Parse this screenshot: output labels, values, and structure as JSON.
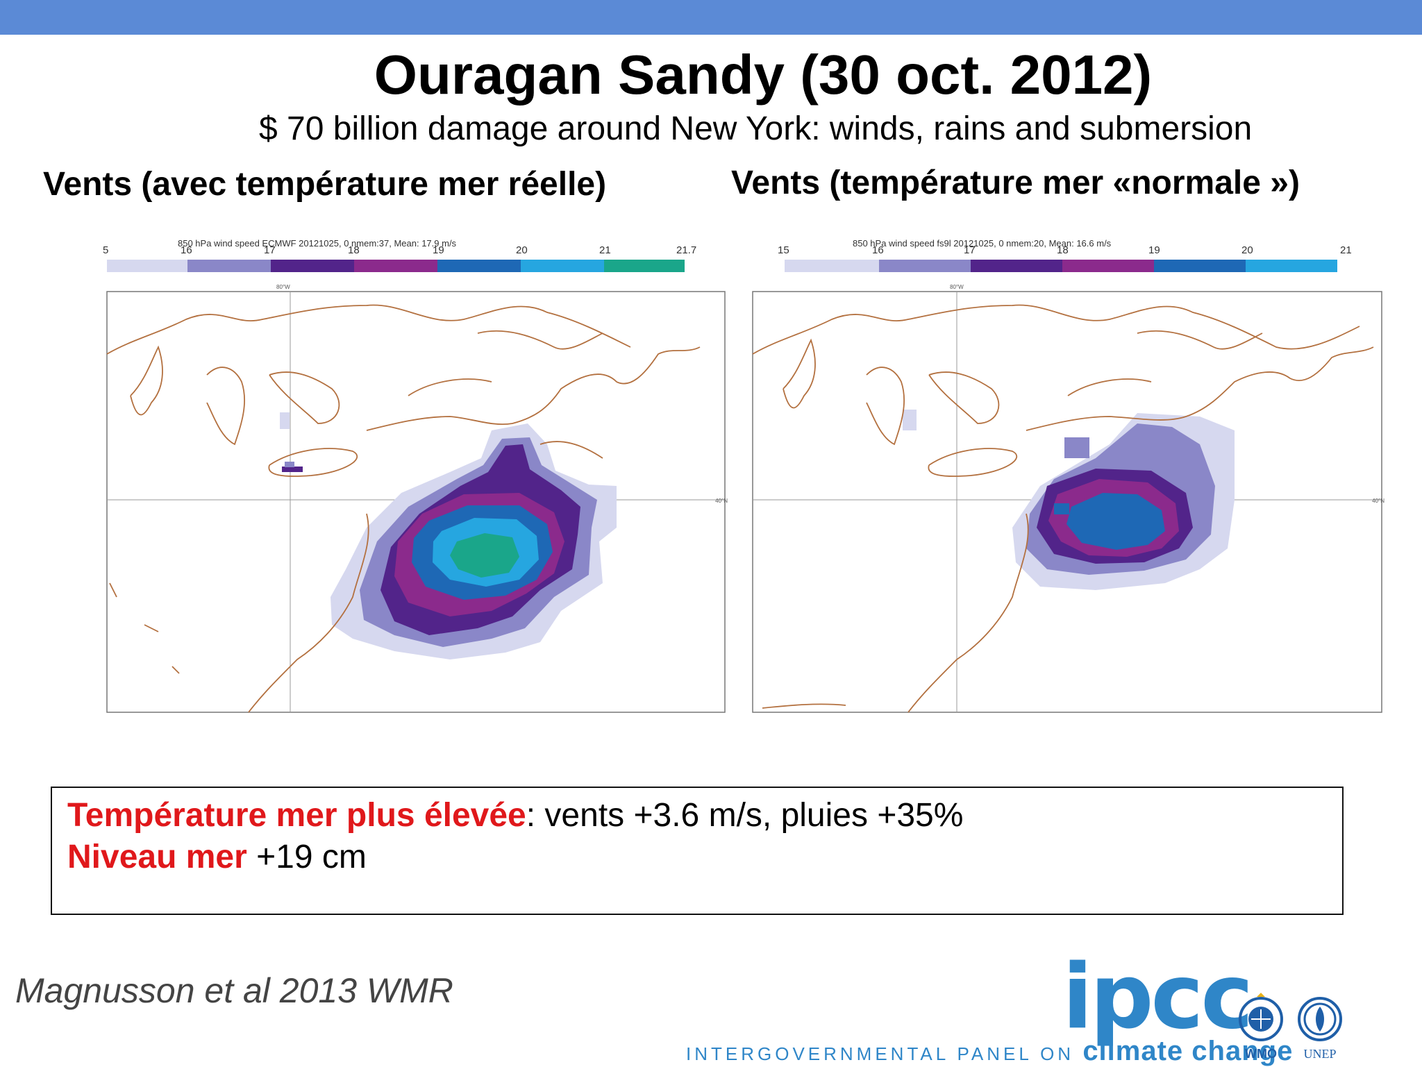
{
  "header": {
    "title": "Ouragan Sandy (30 oct. 2012)",
    "subtitle": "$ 70 billion damage around New York: winds, rains and submersion"
  },
  "panels": {
    "left": {
      "heading": "Vents (avec température mer réelle)",
      "colorbar_caption": "850 hPa wind speed  ECMWF 20121025, 0 nmem:37, Mean: 17.9 m/s",
      "colorbar_ticks": [
        "5",
        "16",
        "17",
        "18",
        "19",
        "20",
        "21",
        "21.7"
      ],
      "colorbar_colors": [
        "#d6d8ef",
        "#8a87c8",
        "#52248a",
        "#8b2a8c",
        "#1e68b5",
        "#26a6e0",
        "#1aa68a"
      ],
      "lon_label": "80°W",
      "lat_label": "40°N"
    },
    "right": {
      "heading": "Vents (température mer «normale »)",
      "colorbar_caption": "850 hPa wind speed  fs9l 20121025, 0 nmem:20, Mean: 16.6 m/s",
      "colorbar_ticks": [
        "15",
        "16",
        "17",
        "18",
        "19",
        "20",
        "21"
      ],
      "colorbar_colors": [
        "#d6d8ef",
        "#8a87c8",
        "#52248a",
        "#8b2a8c",
        "#1e68b5",
        "#26a6e0"
      ],
      "lon_label": "80°W",
      "lat_label": "40°N"
    }
  },
  "infobox": {
    "line1_label": "Température mer plus élevée",
    "line1_text": ":  vents +3.6 m/s, pluies +35%",
    "line2_label": "Niveau mer",
    "line2_text": " +19 cm"
  },
  "citation": "Magnusson et al 2013 WMR",
  "logo": {
    "wordmark": "ipcc",
    "tagline": "INTERGOVERNMENTAL PANEL ON",
    "tagline_emph": "climate change",
    "wmo": "WMO",
    "unep": "UNEP"
  },
  "colors": {
    "topbar": "#5b8ad6",
    "accent_red": "#e0181b",
    "ipcc_blue": "#2f86c8"
  }
}
